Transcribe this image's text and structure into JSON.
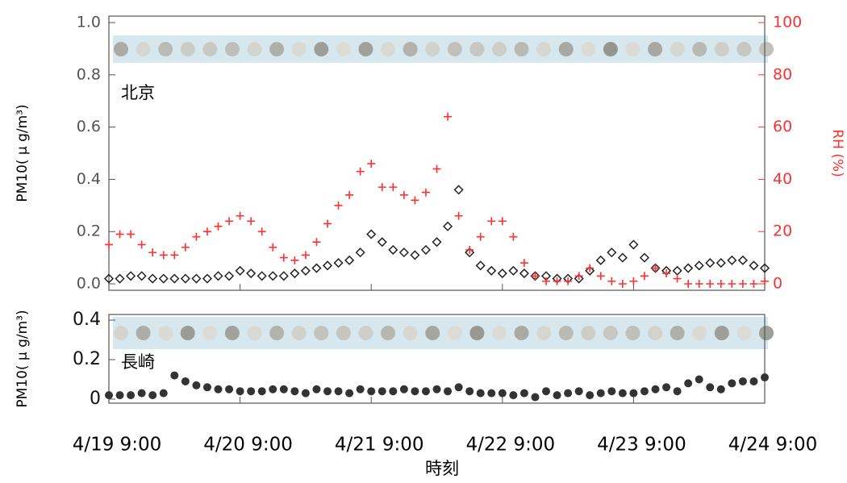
{
  "chart_data": [
    {
      "type": "scatter",
      "annotation": "北京",
      "ylabel": "PM10( μ g/m³)",
      "y2label": "RH (%)",
      "xlim": [
        0,
        120
      ],
      "ylim": [
        0,
        1
      ],
      "y2lim": [
        0,
        100
      ],
      "yticks": [
        {
          "value": 0,
          "label": "0.0"
        },
        0.2,
        0.4,
        0.6,
        0.8,
        {
          "value": 1,
          "label": "1.0"
        }
      ],
      "y2ticks": [
        0,
        20,
        40,
        60,
        80,
        100
      ],
      "x": [
        0,
        2,
        4,
        6,
        8,
        10,
        12,
        14,
        16,
        18,
        20,
        22,
        24,
        26,
        28,
        30,
        32,
        34,
        36,
        38,
        40,
        42,
        44,
        46,
        48,
        50,
        52,
        54,
        56,
        58,
        60,
        62,
        64,
        66,
        68,
        70,
        72,
        74,
        76,
        78,
        80,
        82,
        84,
        86,
        88,
        90,
        92,
        94,
        96,
        98,
        100,
        102,
        104,
        106,
        108,
        110,
        112,
        114,
        116,
        118,
        120
      ],
      "series": [
        {
          "color": "#222222",
          "marker": "diamond-open",
          "values": [
            0.02,
            0.02,
            0.03,
            0.03,
            0.02,
            0.02,
            0.02,
            0.02,
            0.02,
            0.02,
            0.03,
            0.03,
            0.05,
            0.04,
            0.03,
            0.03,
            0.03,
            0.04,
            0.05,
            0.06,
            0.07,
            0.08,
            0.09,
            0.12,
            0.19,
            0.16,
            0.13,
            0.12,
            0.11,
            0.13,
            0.16,
            0.22,
            0.36,
            0.12,
            0.07,
            0.05,
            0.04,
            0.05,
            0.04,
            0.03,
            0.03,
            0.02,
            0.02,
            0.02,
            0.05,
            0.09,
            0.12,
            0.1,
            0.15,
            0.1,
            0.06,
            0.05,
            0.05,
            0.06,
            0.07,
            0.08,
            0.08,
            0.09,
            0.09,
            0.07,
            0.06
          ]
        },
        {
          "color": "#ff3030",
          "marker": "plus",
          "axis": "y2",
          "values": [
            15,
            19,
            19,
            15,
            12,
            11,
            11,
            14,
            18,
            20,
            22,
            24,
            26,
            24,
            20,
            14,
            10,
            9,
            11,
            16,
            23,
            30,
            34,
            43,
            46,
            37,
            37,
            34,
            32,
            35,
            44,
            64,
            26,
            13,
            18,
            24,
            24,
            18,
            8,
            3,
            1,
            1,
            1,
            3,
            6,
            3,
            1,
            0,
            1,
            3,
            6,
            4,
            2,
            0,
            0,
            0,
            0,
            0,
            0,
            0,
            1
          ]
        }
      ]
    },
    {
      "type": "scatter",
      "annotation": "長崎",
      "ylabel": "PM10( μ g/m³)",
      "xlabel": "時刻",
      "xlim": [
        0,
        120
      ],
      "ylim": [
        0,
        0.4
      ],
      "yticks": [
        0,
        0.2,
        0.4
      ],
      "xticks": [
        {
          "value": 0,
          "label": "4/19 9:00"
        },
        {
          "value": 24,
          "label": "4/20 9:00"
        },
        {
          "value": 48,
          "label": "4/21 9:00"
        },
        {
          "value": 72,
          "label": "4/22 9:00"
        },
        {
          "value": 96,
          "label": "4/23 9:00"
        },
        {
          "value": 120,
          "label": "4/24 9:00"
        }
      ],
      "x": [
        0,
        2,
        4,
        6,
        8,
        10,
        12,
        14,
        16,
        18,
        20,
        22,
        24,
        26,
        28,
        30,
        32,
        34,
        36,
        38,
        40,
        42,
        44,
        46,
        48,
        50,
        52,
        54,
        56,
        58,
        60,
        62,
        64,
        66,
        68,
        70,
        72,
        74,
        76,
        78,
        80,
        82,
        84,
        86,
        88,
        90,
        92,
        94,
        96,
        98,
        100,
        102,
        104,
        106,
        108,
        110,
        112,
        114,
        116,
        118,
        120
      ],
      "series": [
        {
          "color": "#333333",
          "marker": "circle",
          "values": [
            0.02,
            0.02,
            0.02,
            0.03,
            0.02,
            0.03,
            0.12,
            0.09,
            0.07,
            0.06,
            0.05,
            0.05,
            0.04,
            0.04,
            0.04,
            0.05,
            0.05,
            0.04,
            0.03,
            0.05,
            0.04,
            0.04,
            0.03,
            0.05,
            0.04,
            0.04,
            0.04,
            0.05,
            0.04,
            0.04,
            0.05,
            0.04,
            0.06,
            0.04,
            0.03,
            0.03,
            0.03,
            0.02,
            0.03,
            0.01,
            0.04,
            0.02,
            0.03,
            0.04,
            0.02,
            0.03,
            0.04,
            0.03,
            0.03,
            0.04,
            0.05,
            0.06,
            0.04,
            0.08,
            0.1,
            0.06,
            0.05,
            0.08,
            0.09,
            0.09,
            0.11
          ]
        }
      ]
    }
  ]
}
